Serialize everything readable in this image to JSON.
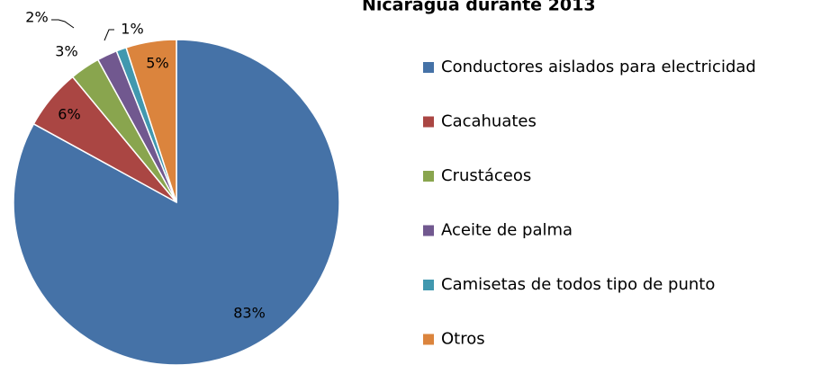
{
  "chart_data": {
    "type": "pie",
    "title": "Nicaragua durante 2013",
    "categories": [
      "Conductores aislados para electricidad",
      "Cacahuates",
      "Crustáceos",
      "Aceite de palma",
      "Camisetas de todos tipo de punto",
      "Otros"
    ],
    "values": [
      83,
      6,
      3,
      2,
      1,
      5
    ],
    "value_labels": [
      "83%",
      "6%",
      "3%",
      "2%",
      "1%",
      "5%"
    ],
    "colors": [
      "#4572a7",
      "#aa4643",
      "#89a54e",
      "#71588f",
      "#4198af",
      "#db843d"
    ]
  }
}
